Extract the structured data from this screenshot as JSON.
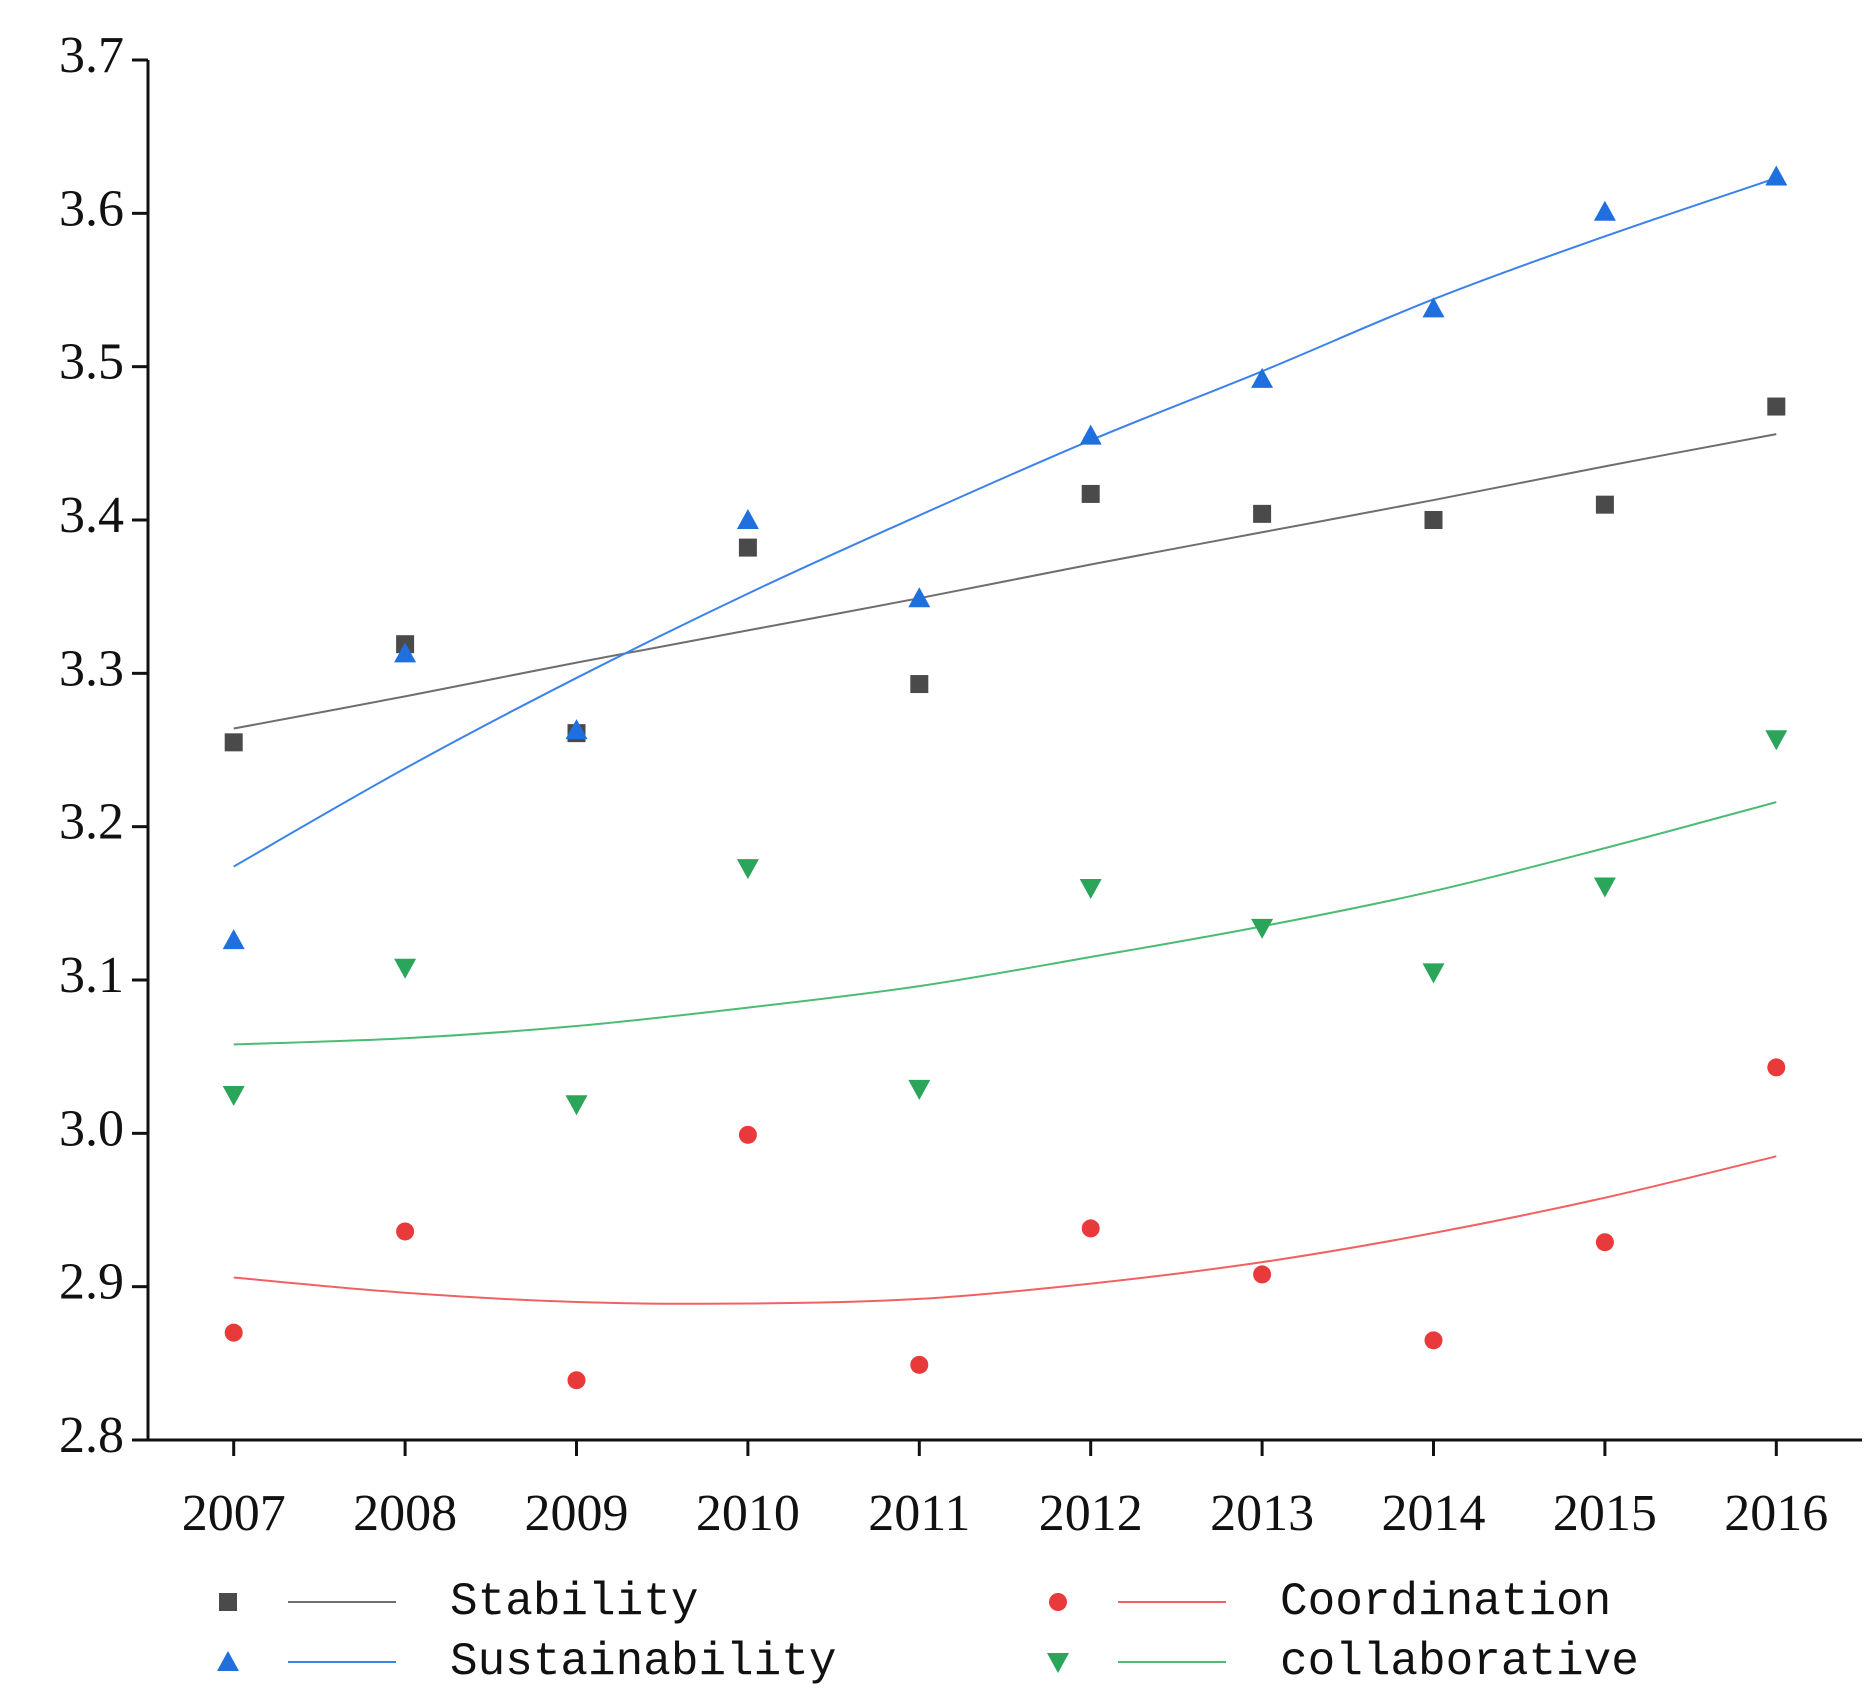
{
  "chart_data": {
    "type": "scatter",
    "categories": [
      "2007",
      "2008",
      "2009",
      "2010",
      "2011",
      "2012",
      "2013",
      "2014",
      "2015",
      "2016"
    ],
    "ylim": [
      2.8,
      3.7
    ],
    "yticks": [
      2.8,
      2.9,
      {
        "value": 3,
        "label": "3.0"
      },
      3.1,
      3.2,
      3.3,
      3.4,
      3.5,
      3.6,
      3.7
    ],
    "legend": "bottom",
    "series": [
      {
        "name": "Stability",
        "color": "#4a4a4a",
        "line_color": "#6e6e6e",
        "marker": "square",
        "values": [
          3.255,
          3.319,
          3.261,
          3.382,
          3.293,
          3.417,
          3.404,
          3.4,
          3.41,
          3.474
        ],
        "fit": [
          3.264,
          3.285,
          3.307,
          3.328,
          3.349,
          3.371,
          3.392,
          3.413,
          3.435,
          3.456
        ]
      },
      {
        "name": "Coordination",
        "color": "#e8393b",
        "line_color": "#f06262",
        "marker": "circle",
        "values": [
          2.87,
          2.936,
          2.839,
          2.999,
          2.849,
          2.938,
          2.908,
          2.865,
          2.929,
          3.043
        ],
        "fit": [
          2.906,
          2.896,
          2.89,
          2.889,
          2.892,
          2.902,
          2.916,
          2.935,
          2.958,
          2.985
        ]
      },
      {
        "name": "Sustainability",
        "color": "#1f6fde",
        "line_color": "#3b82ea",
        "marker": "triangle-up",
        "values": [
          3.126,
          3.313,
          3.263,
          3.4,
          3.349,
          3.455,
          3.492,
          3.538,
          3.601,
          3.624
        ],
        "fit": [
          3.174,
          3.238,
          3.297,
          3.352,
          3.403,
          3.452,
          3.497,
          3.544,
          3.585,
          3.623
        ]
      },
      {
        "name": "collaborative",
        "color": "#2aa55a",
        "line_color": "#4cbb74",
        "marker": "triangle-down",
        "values": [
          3.025,
          3.108,
          3.019,
          3.173,
          3.029,
          3.16,
          3.134,
          3.105,
          3.161,
          3.257
        ],
        "fit": [
          3.058,
          3.062,
          3.07,
          3.082,
          3.096,
          3.115,
          3.135,
          3.158,
          3.186,
          3.216
        ]
      }
    ]
  }
}
